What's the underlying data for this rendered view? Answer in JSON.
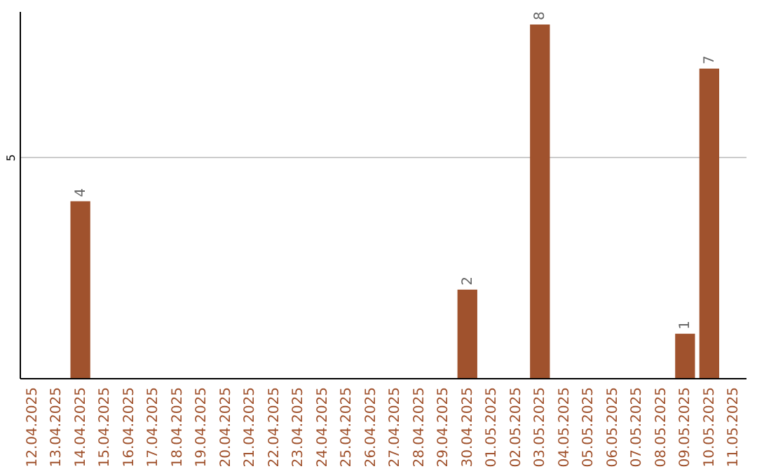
{
  "chart_data": {
    "type": "bar",
    "categories": [
      "12.04.2025",
      "13.04.2025",
      "14.04.2025",
      "15.04.2025",
      "16.04.2025",
      "17.04.2025",
      "18.04.2025",
      "19.04.2025",
      "20.04.2025",
      "21.04.2025",
      "22.04.2025",
      "23.04.2025",
      "24.04.2025",
      "25.04.2025",
      "26.04.2025",
      "27.04.2025",
      "28.04.2025",
      "29.04.2025",
      "30.04.2025",
      "01.05.2025",
      "02.05.2025",
      "03.05.2025",
      "04.05.2025",
      "05.05.2025",
      "06.05.2025",
      "07.05.2025",
      "08.05.2025",
      "09.05.2025",
      "10.05.2025",
      "11.05.2025"
    ],
    "values": [
      0,
      0,
      4,
      0,
      0,
      0,
      0,
      0,
      0,
      0,
      0,
      0,
      0,
      0,
      0,
      0,
      0,
      0,
      2,
      0,
      0,
      8,
      0,
      0,
      0,
      0,
      0,
      1,
      7,
      0
    ],
    "value_labels": [
      null,
      null,
      "4",
      null,
      null,
      null,
      null,
      null,
      null,
      null,
      null,
      null,
      null,
      null,
      null,
      null,
      null,
      null,
      "2",
      null,
      null,
      "8",
      null,
      null,
      null,
      null,
      null,
      "1",
      "7",
      null
    ],
    "color": "#a0522d",
    "ylim": [
      0,
      8.3
    ],
    "yticks": [
      5
    ],
    "grid": "y"
  }
}
